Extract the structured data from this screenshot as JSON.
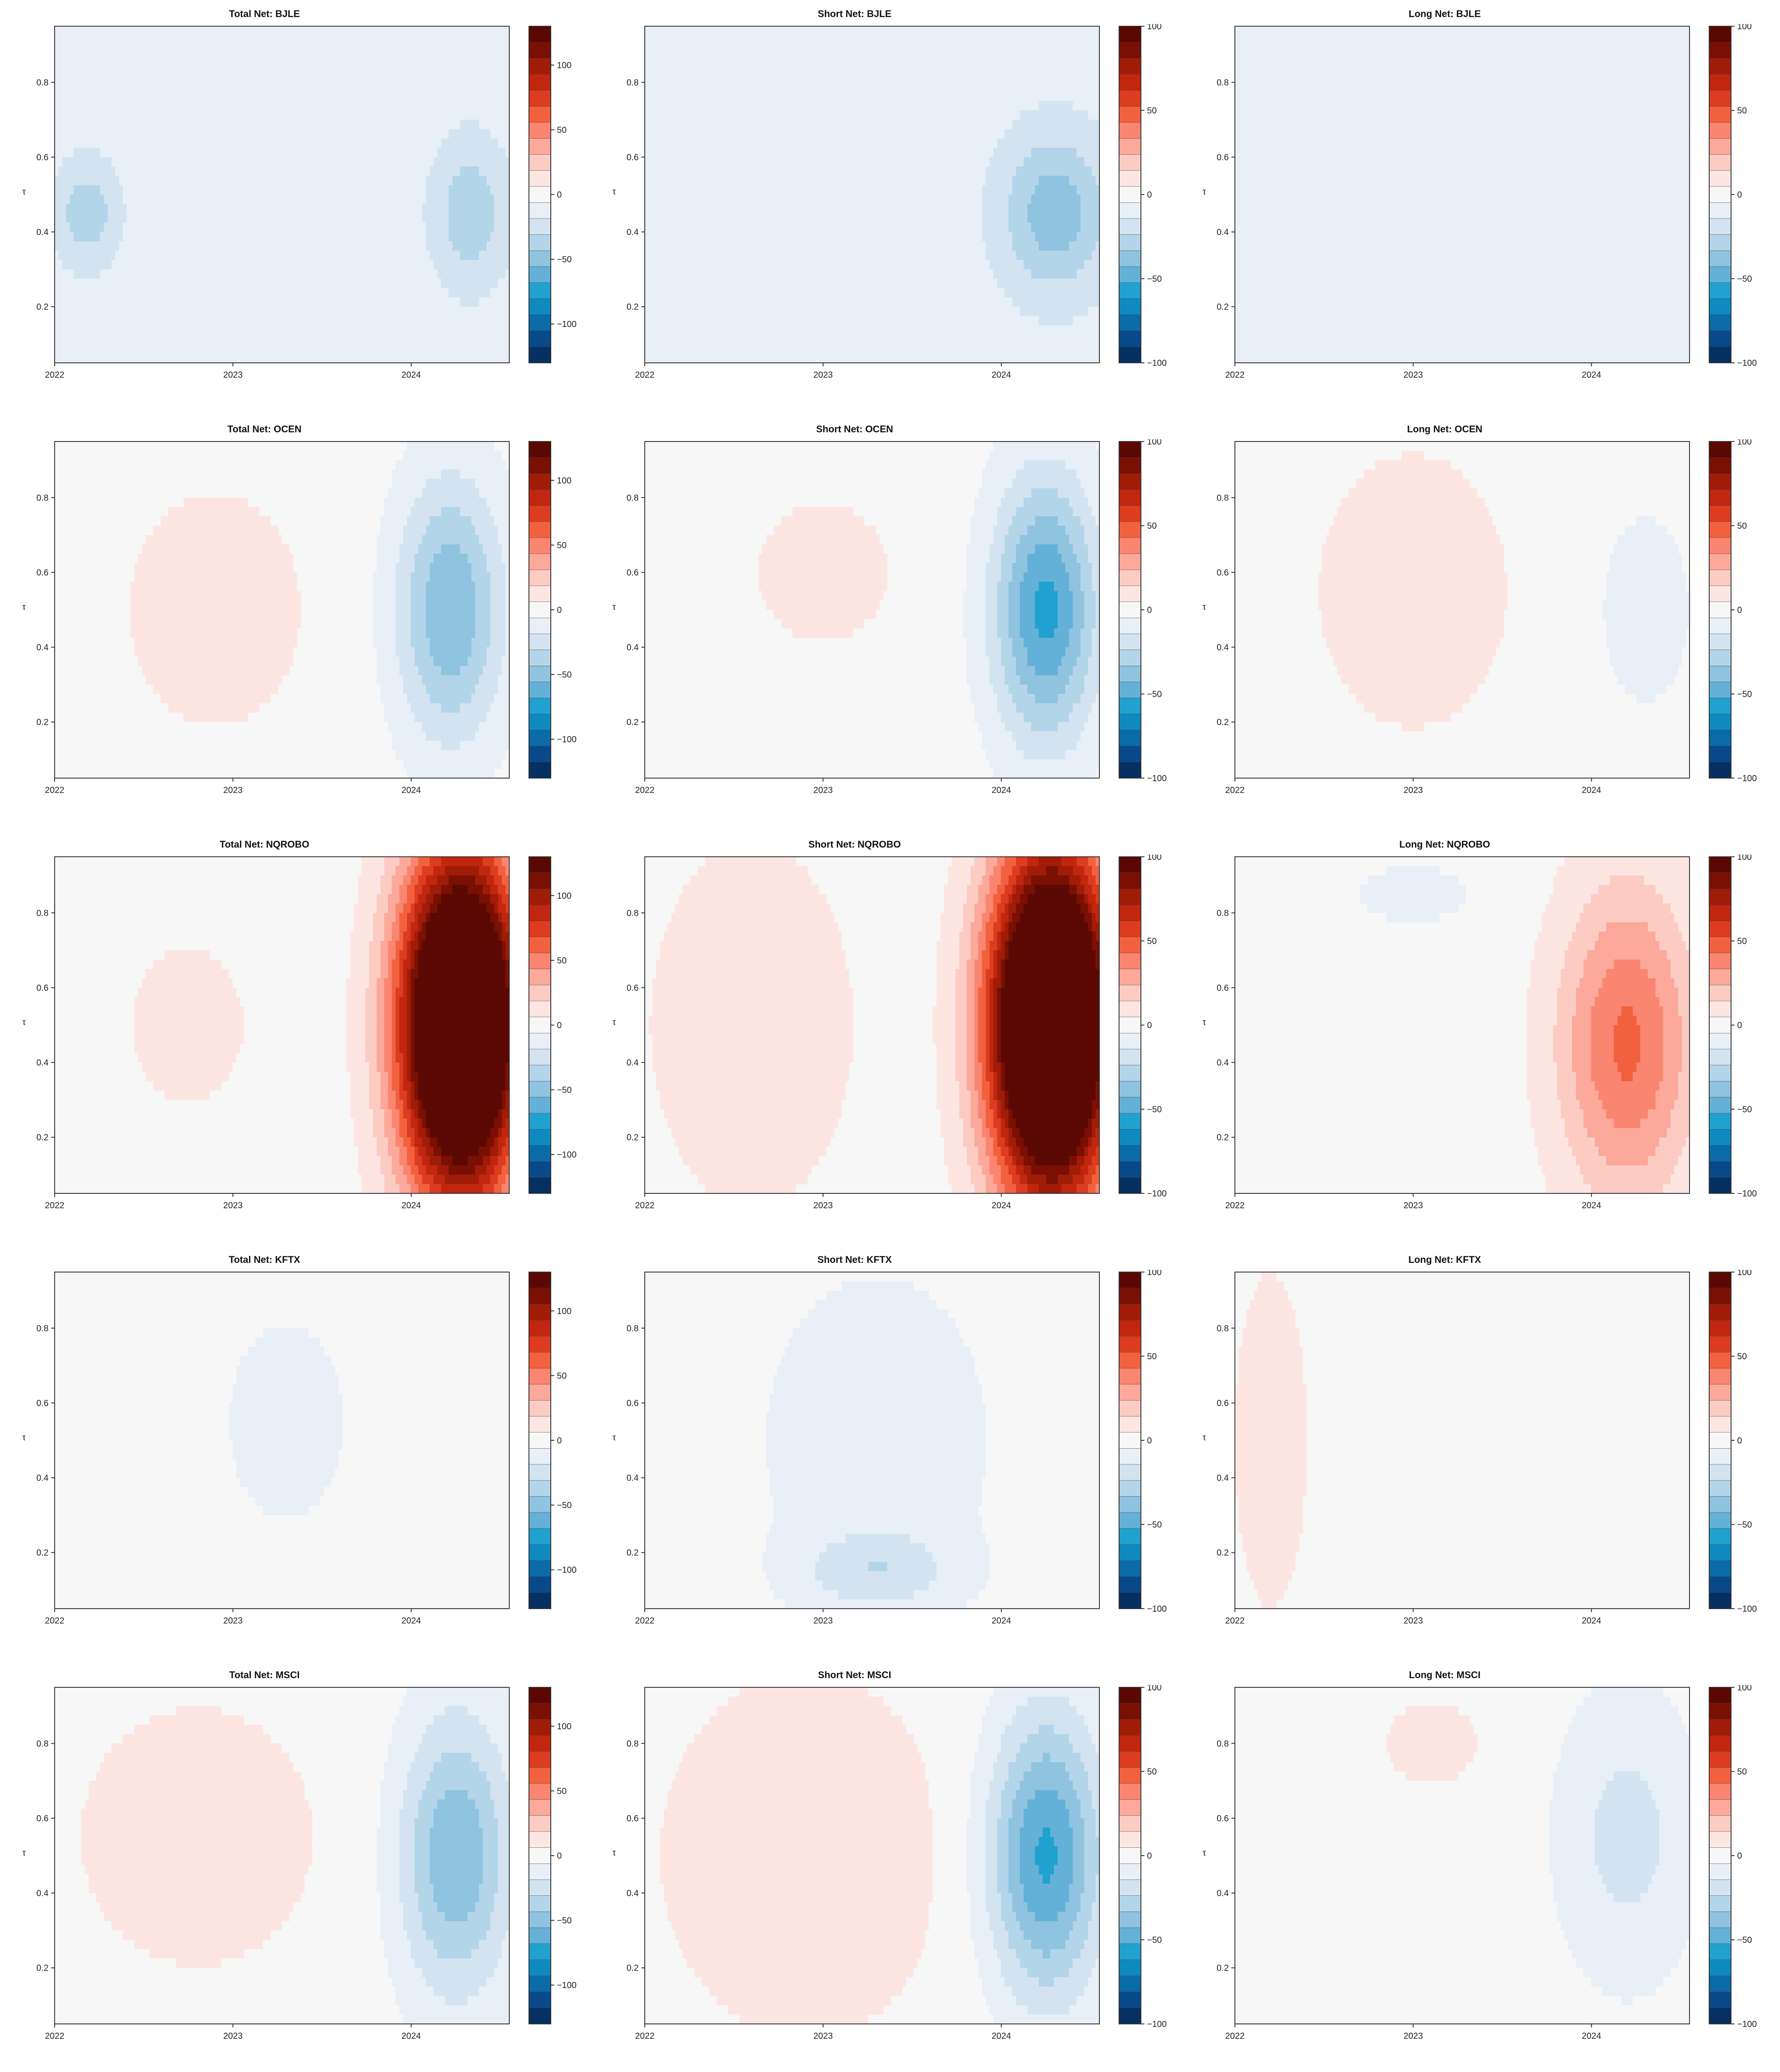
{
  "palette": {
    "diverging": [
      "#053061",
      "#08498a",
      "#0b6aa8",
      "#0f8ac1",
      "#20a1cf",
      "#64b1d7",
      "#8fc3e0",
      "#b3d5ea",
      "#d3e4f0",
      "#e8eff6",
      "#f7f7f7",
      "#fde6e2",
      "#fcccc3",
      "#fca89a",
      "#fa8570",
      "#f2613d",
      "#dc3c1f",
      "#c1260f",
      "#a01c07",
      "#7a0f04",
      "#5b0802"
    ]
  },
  "figure": {
    "columns": [
      "Total Net",
      "Short Net",
      "Long Net"
    ],
    "tickers": [
      "BJLE",
      "OCEN",
      "NQROBO",
      "KFTX",
      "MSCI"
    ]
  },
  "chart_data": [
    {
      "type": "heatmap",
      "title": "Total Net: BJLE",
      "ylabel": "τ",
      "xticks": [
        "2022",
        "2023",
        "2024"
      ],
      "yticks": [
        "0.2",
        "0.4",
        "0.6",
        "0.8"
      ],
      "ylim": [
        0.05,
        0.95
      ],
      "colorbar_ticks": [
        "100",
        "50",
        "0",
        "−50",
        "−100"
      ],
      "vrange": [
        -130,
        130
      ],
      "blobs": [
        {
          "x": 2022.18,
          "y": 0.45,
          "rx": 0.25,
          "ry": 0.2,
          "v": -30
        },
        {
          "x": 2024.33,
          "y": 0.45,
          "rx": 0.3,
          "ry": 0.28,
          "v": -30
        }
      ],
      "base": -8
    },
    {
      "type": "heatmap",
      "title": "Short Net: BJLE",
      "ylabel": "τ",
      "xticks": [
        "2022",
        "2023",
        "2024"
      ],
      "yticks": [
        "0.2",
        "0.4",
        "0.6",
        "0.8"
      ],
      "ylim": [
        0.05,
        0.95
      ],
      "colorbar_ticks": [
        "100",
        "50",
        "0",
        "−50",
        "−100"
      ],
      "vrange": [
        -100,
        100
      ],
      "blobs": [
        {
          "x": 2024.3,
          "y": 0.45,
          "rx": 0.35,
          "ry": 0.25,
          "v": -30
        }
      ],
      "base": -10
    },
    {
      "type": "heatmap",
      "title": "Long Net: BJLE",
      "ylabel": "τ",
      "xticks": [
        "2022",
        "2023",
        "2024"
      ],
      "yticks": [
        "0.2",
        "0.4",
        "0.6",
        "0.8"
      ],
      "ylim": [
        0.05,
        0.95
      ],
      "colorbar_ticks": [
        "100",
        "50",
        "0",
        "−50",
        "−100"
      ],
      "vrange": [
        -100,
        100
      ],
      "blobs": [],
      "base": -5
    },
    {
      "type": "heatmap",
      "title": "Total Net: OCEN",
      "ylabel": "τ",
      "xticks": [
        "2022",
        "2023",
        "2024"
      ],
      "yticks": [
        "0.2",
        "0.4",
        "0.6",
        "0.8"
      ],
      "ylim": [
        0.05,
        0.95
      ],
      "colorbar_ticks": [
        "100",
        "50",
        "0",
        "−50",
        "−100"
      ],
      "vrange": [
        -130,
        130
      ],
      "blobs": [
        {
          "x": 2022.9,
          "y": 0.5,
          "rx": 0.7,
          "ry": 0.45,
          "v": 12
        },
        {
          "x": 2024.22,
          "y": 0.5,
          "rx": 0.36,
          "ry": 0.42,
          "v": -55
        }
      ],
      "base": 0
    },
    {
      "type": "heatmap",
      "title": "Short Net: OCEN",
      "ylabel": "τ",
      "xticks": [
        "2022",
        "2023",
        "2024"
      ],
      "yticks": [
        "0.2",
        "0.4",
        "0.6",
        "0.8"
      ],
      "ylim": [
        0.05,
        0.95
      ],
      "colorbar_ticks": [
        "100",
        "50",
        "0",
        "−50",
        "−100"
      ],
      "vrange": [
        -100,
        100
      ],
      "blobs": [
        {
          "x": 2023.0,
          "y": 0.6,
          "rx": 0.5,
          "ry": 0.25,
          "v": 10
        },
        {
          "x": 2024.25,
          "y": 0.5,
          "rx": 0.35,
          "ry": 0.42,
          "v": -55
        }
      ],
      "base": 0
    },
    {
      "type": "heatmap",
      "title": "Long Net: OCEN",
      "ylabel": "τ",
      "xticks": [
        "2022",
        "2023",
        "2024"
      ],
      "yticks": [
        "0.2",
        "0.4",
        "0.6",
        "0.8"
      ],
      "ylim": [
        0.05,
        0.95
      ],
      "colorbar_ticks": [
        "100",
        "50",
        "0",
        "−50",
        "−100"
      ],
      "vrange": [
        -100,
        100
      ],
      "blobs": [
        {
          "x": 2023.0,
          "y": 0.55,
          "rx": 0.65,
          "ry": 0.45,
          "v": 12
        },
        {
          "x": 2024.3,
          "y": 0.5,
          "rx": 0.4,
          "ry": 0.4,
          "v": -8
        }
      ],
      "base": 0
    },
    {
      "type": "heatmap",
      "title": "Total Net: NQROBO",
      "ylabel": "τ",
      "xticks": [
        "2022",
        "2023",
        "2024"
      ],
      "yticks": [
        "0.2",
        "0.4",
        "0.6",
        "0.8"
      ],
      "ylim": [
        0.05,
        0.95
      ],
      "colorbar_ticks": [
        "100",
        "50",
        "0",
        "−50",
        "−100"
      ],
      "vrange": [
        -130,
        130
      ],
      "blobs": [
        {
          "x": 2022.75,
          "y": 0.5,
          "rx": 0.45,
          "ry": 0.3,
          "v": 12
        },
        {
          "x": 2024.28,
          "y": 0.5,
          "rx": 0.4,
          "ry": 0.55,
          "v": 220
        }
      ],
      "base": 0
    },
    {
      "type": "heatmap",
      "title": "Short Net: NQROBO",
      "ylabel": "τ",
      "xticks": [
        "2022",
        "2023",
        "2024"
      ],
      "yticks": [
        "0.2",
        "0.4",
        "0.6",
        "0.8"
      ],
      "ylim": [
        0.05,
        0.95
      ],
      "colorbar_ticks": [
        "100",
        "50",
        "0",
        "−50",
        "−100"
      ],
      "vrange": [
        -100,
        100
      ],
      "blobs": [
        {
          "x": 2022.6,
          "y": 0.5,
          "rx": 0.7,
          "ry": 0.6,
          "v": 12
        },
        {
          "x": 2024.28,
          "y": 0.5,
          "rx": 0.4,
          "ry": 0.55,
          "v": 180
        }
      ],
      "base": 0
    },
    {
      "type": "heatmap",
      "title": "Long Net: NQROBO",
      "ylabel": "τ",
      "xticks": [
        "2022",
        "2023",
        "2024"
      ],
      "yticks": [
        "0.2",
        "0.4",
        "0.6",
        "0.8"
      ],
      "ylim": [
        0.05,
        0.95
      ],
      "colorbar_ticks": [
        "100",
        "50",
        "0",
        "−50",
        "−100"
      ],
      "vrange": [
        -100,
        100
      ],
      "blobs": [
        {
          "x": 2024.2,
          "y": 0.45,
          "rx": 0.45,
          "ry": 0.5,
          "v": 45
        },
        {
          "x": 2023.0,
          "y": 0.85,
          "rx": 0.5,
          "ry": 0.12,
          "v": -8
        }
      ],
      "base": 0
    },
    {
      "type": "heatmap",
      "title": "Total Net: KFTX",
      "ylabel": "τ",
      "xticks": [
        "2022",
        "2023",
        "2024"
      ],
      "yticks": [
        "0.2",
        "0.4",
        "0.6",
        "0.8"
      ],
      "ylim": [
        0.05,
        0.95
      ],
      "colorbar_ticks": [
        "100",
        "50",
        "0",
        "−50",
        "−100"
      ],
      "vrange": [
        -130,
        130
      ],
      "blobs": [
        {
          "x": 2023.3,
          "y": 0.55,
          "rx": 0.75,
          "ry": 0.6,
          "v": -8
        }
      ],
      "base": 0
    },
    {
      "type": "heatmap",
      "title": "Short Net: KFTX",
      "ylabel": "τ",
      "xticks": [
        "2022",
        "2023",
        "2024"
      ],
      "yticks": [
        "0.2",
        "0.4",
        "0.6",
        "0.8"
      ],
      "ylim": [
        0.05,
        0.95
      ],
      "colorbar_ticks": [
        "100",
        "50",
        "0",
        "−50",
        "−100"
      ],
      "vrange": [
        -100,
        100
      ],
      "blobs": [
        {
          "x": 2023.3,
          "y": 0.5,
          "rx": 0.85,
          "ry": 0.6,
          "v": -10
        },
        {
          "x": 2023.3,
          "y": 0.15,
          "rx": 0.5,
          "ry": 0.12,
          "v": -18
        }
      ],
      "base": 0
    },
    {
      "type": "heatmap",
      "title": "Long Net: KFTX",
      "ylabel": "τ",
      "xticks": [
        "2022",
        "2023",
        "2024"
      ],
      "yticks": [
        "0.2",
        "0.4",
        "0.6",
        "0.8"
      ],
      "ylim": [
        0.05,
        0.95
      ],
      "colorbar_ticks": [
        "100",
        "50",
        "0",
        "−50",
        "−100"
      ],
      "vrange": [
        -100,
        100
      ],
      "blobs": [
        {
          "x": 2022.2,
          "y": 0.5,
          "rx": 0.25,
          "ry": 0.55,
          "v": 12
        }
      ],
      "base": 0
    },
    {
      "type": "heatmap",
      "title": "Total Net: MSCI",
      "ylabel": "τ",
      "xticks": [
        "2022",
        "2023",
        "2024"
      ],
      "yticks": [
        "0.2",
        "0.4",
        "0.6",
        "0.8"
      ],
      "ylim": [
        0.05,
        0.95
      ],
      "colorbar_ticks": [
        "100",
        "50",
        "0",
        "−50",
        "−100"
      ],
      "vrange": [
        -130,
        130
      ],
      "blobs": [
        {
          "x": 2022.8,
          "y": 0.55,
          "rx": 0.95,
          "ry": 0.5,
          "v": 12
        },
        {
          "x": 2024.25,
          "y": 0.5,
          "rx": 0.38,
          "ry": 0.45,
          "v": -55
        }
      ],
      "base": 0
    },
    {
      "type": "heatmap",
      "title": "Short Net: MSCI",
      "ylabel": "τ",
      "xticks": [
        "2022",
        "2023",
        "2024"
      ],
      "yticks": [
        "0.2",
        "0.4",
        "0.6",
        "0.8"
      ],
      "ylim": [
        0.05,
        0.95
      ],
      "colorbar_ticks": [
        "100",
        "50",
        "0",
        "−50",
        "−100"
      ],
      "vrange": [
        -100,
        100
      ],
      "blobs": [
        {
          "x": 2022.9,
          "y": 0.5,
          "rx": 1.0,
          "ry": 0.6,
          "v": 12
        },
        {
          "x": 2024.25,
          "y": 0.5,
          "rx": 0.38,
          "ry": 0.45,
          "v": -55
        }
      ],
      "base": 0
    },
    {
      "type": "heatmap",
      "title": "Long Net: MSCI",
      "ylabel": "τ",
      "xticks": [
        "2022",
        "2023",
        "2024"
      ],
      "yticks": [
        "0.2",
        "0.4",
        "0.6",
        "0.8"
      ],
      "ylim": [
        0.05,
        0.95
      ],
      "colorbar_ticks": [
        "100",
        "50",
        "0",
        "−50",
        "−100"
      ],
      "vrange": [
        -100,
        100
      ],
      "blobs": [
        {
          "x": 2023.1,
          "y": 0.8,
          "rx": 0.35,
          "ry": 0.15,
          "v": 10
        },
        {
          "x": 2024.2,
          "y": 0.55,
          "rx": 0.45,
          "ry": 0.45,
          "v": -18
        }
      ],
      "base": 0
    }
  ]
}
